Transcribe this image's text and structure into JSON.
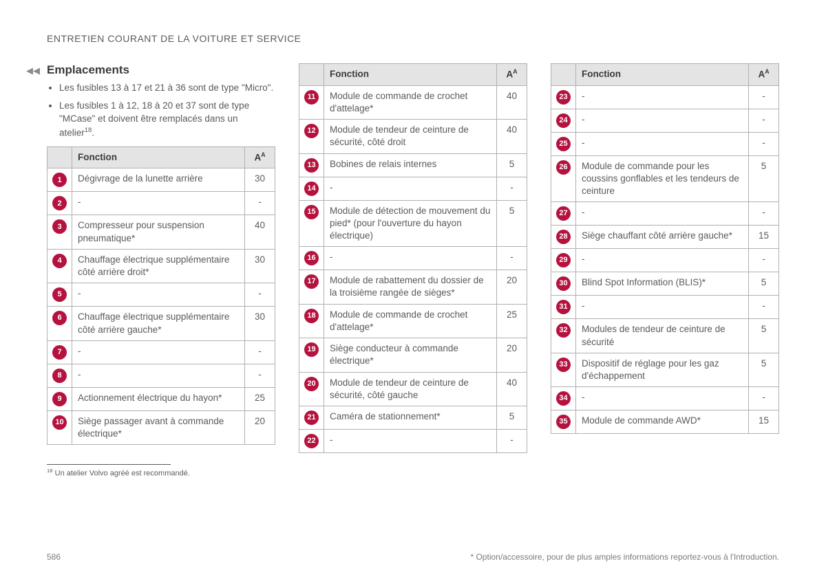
{
  "header": "ENTRETIEN COURANT DE LA VOITURE ET SERVICE",
  "section_title": "Emplacements",
  "bullets": [
    "Les fusibles 13 à 17 et 21 à 36 sont de type \"Micro\".",
    "Les fusibles 1 à 12, 18 à 20 et 37 sont de type \"MCase\" et doivent être remplacés dans un atelier"
  ],
  "bullet_sup": "18",
  "table_headers": {
    "function": "Fonction",
    "amp": "A",
    "amp_sup": "A"
  },
  "col1_rows": [
    {
      "n": "1",
      "f": "Dégivrage de la lunette arrière",
      "a": "30"
    },
    {
      "n": "2",
      "f": "-",
      "a": "-"
    },
    {
      "n": "3",
      "f": "Compresseur pour suspension pneumatique*",
      "a": "40"
    },
    {
      "n": "4",
      "f": "Chauffage électrique supplémentaire côté arrière droit*",
      "a": "30"
    },
    {
      "n": "5",
      "f": "-",
      "a": "-"
    },
    {
      "n": "6",
      "f": "Chauffage électrique supplémentaire côté arrière gauche*",
      "a": "30"
    },
    {
      "n": "7",
      "f": "-",
      "a": "-"
    },
    {
      "n": "8",
      "f": "-",
      "a": "-"
    },
    {
      "n": "9",
      "f": "Actionnement électrique du hayon*",
      "a": "25"
    },
    {
      "n": "10",
      "f": "Siège passager avant à commande électrique*",
      "a": "20"
    }
  ],
  "col2_rows": [
    {
      "n": "11",
      "f": "Module de commande de crochet d'attelage*",
      "a": "40"
    },
    {
      "n": "12",
      "f": "Module de tendeur de ceinture de sécurité, côté droit",
      "a": "40"
    },
    {
      "n": "13",
      "f": "Bobines de relais internes",
      "a": "5"
    },
    {
      "n": "14",
      "f": "-",
      "a": "-"
    },
    {
      "n": "15",
      "f": "Module de détection de mouvement du pied* (pour l'ouverture du hayon électrique)",
      "a": "5"
    },
    {
      "n": "16",
      "f": "-",
      "a": "-"
    },
    {
      "n": "17",
      "f": "Module de rabattement du dossier de la troisième rangée de sièges*",
      "a": "20"
    },
    {
      "n": "18",
      "f": "Module de commande de crochet d'attelage*",
      "a": "25"
    },
    {
      "n": "19",
      "f": "Siège conducteur à commande électrique*",
      "a": "20"
    },
    {
      "n": "20",
      "f": "Module de tendeur de ceinture de sécurité, côté gauche",
      "a": "40"
    },
    {
      "n": "21",
      "f": "Caméra de stationnement*",
      "a": "5"
    },
    {
      "n": "22",
      "f": "-",
      "a": "-"
    }
  ],
  "col3_rows": [
    {
      "n": "23",
      "f": "-",
      "a": "-"
    },
    {
      "n": "24",
      "f": "-",
      "a": "-"
    },
    {
      "n": "25",
      "f": "-",
      "a": "-"
    },
    {
      "n": "26",
      "f": "Module de commande pour les coussins gonflables et les tendeurs de ceinture",
      "a": "5"
    },
    {
      "n": "27",
      "f": "-",
      "a": "-"
    },
    {
      "n": "28",
      "f": "Siège chauffant côté arrière gauche*",
      "a": "15"
    },
    {
      "n": "29",
      "f": "-",
      "a": "-"
    },
    {
      "n": "30",
      "f": "Blind Spot Information (BLIS)*",
      "a": "5"
    },
    {
      "n": "31",
      "f": "-",
      "a": "-"
    },
    {
      "n": "32",
      "f": "Modules de tendeur de ceinture de sécurité",
      "a": "5"
    },
    {
      "n": "33",
      "f": "Dispositif de réglage pour les gaz d'échappement",
      "a": "5"
    },
    {
      "n": "34",
      "f": "-",
      "a": "-"
    },
    {
      "n": "35",
      "f": "Module de commande AWD*",
      "a": "15"
    }
  ],
  "footnote_num": "18",
  "footnote_text": " Un atelier Volvo agréé est recommandé.",
  "page_number": "586",
  "footer_note": "* Option/accessoire, pour de plus amples informations reportez-vous à l'Introduction.",
  "styles": {
    "badge_bg": "#b5123e",
    "badge_fg": "#ffffff",
    "header_bg": "#e4e4e4",
    "border_color": "#b0b0b0",
    "text_color": "#5a5a5a"
  }
}
